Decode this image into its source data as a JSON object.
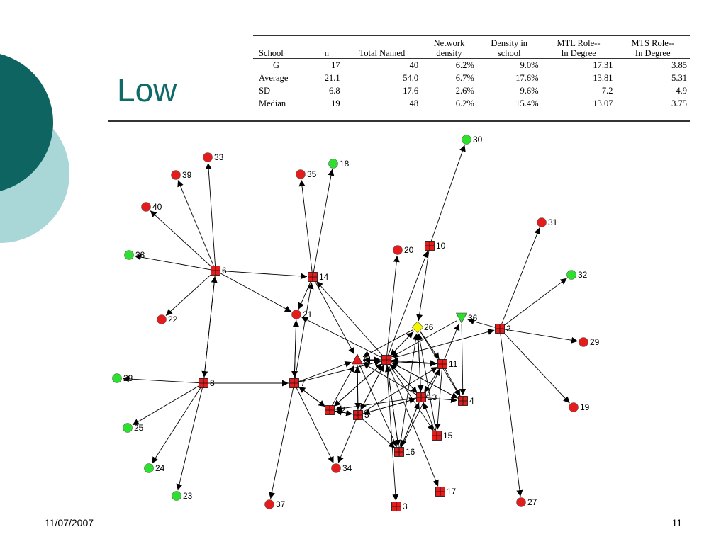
{
  "title": "Low",
  "footer": {
    "date": "11/07/2007",
    "page": "11"
  },
  "table": {
    "headers": [
      "School",
      "n",
      "Total Named",
      "Network density",
      "Density in school",
      "MTL Role-- In Degree",
      "MTS Role-- In Degree"
    ],
    "header_lines": [
      [
        "School"
      ],
      [
        "n"
      ],
      [
        "Total Named"
      ],
      [
        "Network",
        "density"
      ],
      [
        "Density in",
        "school"
      ],
      [
        "MTL Role--",
        "In Degree"
      ],
      [
        "MTS Role--",
        "In Degree"
      ]
    ],
    "rows": [
      [
        "G",
        "17",
        "40",
        "6.2%",
        "9.0%",
        "17.31",
        "3.85"
      ],
      [
        "Average",
        "21.1",
        "54.0",
        "6.7%",
        "17.6%",
        "13.81",
        "5.31"
      ],
      [
        "SD",
        "6.8",
        "17.6",
        "2.6%",
        "9.6%",
        "7.2",
        "4.9"
      ],
      [
        "Median",
        "19",
        "48",
        "6.2%",
        "15.4%",
        "13.07",
        "3.75"
      ]
    ]
  },
  "network": {
    "colors": {
      "red": "#e41c1c",
      "green": "#2ee02e",
      "yellow": "#f5f500",
      "edge": "#000000"
    },
    "nodes": [
      {
        "id": "1",
        "label": "1",
        "shape": "square",
        "color": "red"
      },
      {
        "id": "2",
        "label": "2",
        "shape": "square",
        "color": "red"
      },
      {
        "id": "3",
        "label": "3",
        "shape": "square",
        "color": "red"
      },
      {
        "id": "4",
        "label": "4",
        "shape": "square",
        "color": "red"
      },
      {
        "id": "5",
        "label": "5",
        "shape": "square",
        "color": "red"
      },
      {
        "id": "6",
        "label": "6",
        "shape": "square",
        "color": "red"
      },
      {
        "id": "7",
        "label": "7",
        "shape": "square",
        "color": "red"
      },
      {
        "id": "8",
        "label": "8",
        "shape": "square",
        "color": "red"
      },
      {
        "id": "9",
        "label": "9",
        "shape": "triangle-up",
        "color": "red"
      },
      {
        "id": "10",
        "label": "10",
        "shape": "square",
        "color": "red"
      },
      {
        "id": "11",
        "label": "11",
        "shape": "square",
        "color": "red"
      },
      {
        "id": "12",
        "label": "12",
        "shape": "square",
        "color": "red"
      },
      {
        "id": "13",
        "label": "13",
        "shape": "square",
        "color": "red"
      },
      {
        "id": "14",
        "label": "14",
        "shape": "square",
        "color": "red"
      },
      {
        "id": "15",
        "label": "15",
        "shape": "square",
        "color": "red"
      },
      {
        "id": "16",
        "label": "16",
        "shape": "square",
        "color": "red"
      },
      {
        "id": "17",
        "label": "17",
        "shape": "square",
        "color": "red"
      },
      {
        "id": "18",
        "label": "18",
        "shape": "circle",
        "color": "green"
      },
      {
        "id": "19",
        "label": "19",
        "shape": "circle",
        "color": "red"
      },
      {
        "id": "20",
        "label": "20",
        "shape": "circle",
        "color": "red"
      },
      {
        "id": "21",
        "label": "21",
        "shape": "circle",
        "color": "red"
      },
      {
        "id": "22",
        "label": "22",
        "shape": "circle",
        "color": "red"
      },
      {
        "id": "23",
        "label": "23",
        "shape": "circle",
        "color": "green"
      },
      {
        "id": "24",
        "label": "24",
        "shape": "circle",
        "color": "green"
      },
      {
        "id": "25",
        "label": "25",
        "shape": "circle",
        "color": "green"
      },
      {
        "id": "26",
        "label": "26",
        "shape": "diamond",
        "color": "yellow"
      },
      {
        "id": "27",
        "label": "27",
        "shape": "circle",
        "color": "red"
      },
      {
        "id": "28",
        "label": "28",
        "shape": "circle",
        "color": "green"
      },
      {
        "id": "29",
        "label": "29",
        "shape": "circle",
        "color": "red"
      },
      {
        "id": "30",
        "label": "30",
        "shape": "circle",
        "color": "green"
      },
      {
        "id": "31",
        "label": "31",
        "shape": "circle",
        "color": "red"
      },
      {
        "id": "32",
        "label": "32",
        "shape": "circle",
        "color": "green"
      },
      {
        "id": "33",
        "label": "33",
        "shape": "circle",
        "color": "red"
      },
      {
        "id": "34",
        "label": "34",
        "shape": "circle",
        "color": "red"
      },
      {
        "id": "35",
        "label": "35",
        "shape": "circle",
        "color": "red"
      },
      {
        "id": "36",
        "label": "36",
        "shape": "triangle-down",
        "color": "green"
      },
      {
        "id": "37",
        "label": "37",
        "shape": "circle",
        "color": "red"
      },
      {
        "id": "38",
        "label": "38",
        "shape": "circle",
        "color": "green"
      },
      {
        "id": "39",
        "label": "39",
        "shape": "circle",
        "color": "red"
      },
      {
        "id": "40",
        "label": "40",
        "shape": "circle",
        "color": "red"
      }
    ],
    "edges": [
      [
        "6",
        "33"
      ],
      [
        "6",
        "39"
      ],
      [
        "6",
        "40"
      ],
      [
        "6",
        "38"
      ],
      [
        "6",
        "14"
      ],
      [
        "6",
        "21"
      ],
      [
        "6",
        "22"
      ],
      [
        "6",
        "8"
      ],
      [
        "8",
        "6"
      ],
      [
        "8",
        "28"
      ],
      [
        "8",
        "25"
      ],
      [
        "8",
        "24"
      ],
      [
        "8",
        "23"
      ],
      [
        "8",
        "7"
      ],
      [
        "14",
        "35"
      ],
      [
        "14",
        "18"
      ],
      [
        "14",
        "21"
      ],
      [
        "14",
        "9"
      ],
      [
        "7",
        "14"
      ],
      [
        "7",
        "21"
      ],
      [
        "7",
        "37"
      ],
      [
        "7",
        "34"
      ],
      [
        "7",
        "12"
      ],
      [
        "7",
        "9"
      ],
      [
        "7",
        "1"
      ],
      [
        "21",
        "7"
      ],
      [
        "1",
        "21"
      ],
      [
        "1",
        "20"
      ],
      [
        "1",
        "10"
      ],
      [
        "1",
        "26"
      ],
      [
        "1",
        "2"
      ],
      [
        "1",
        "11"
      ],
      [
        "1",
        "13"
      ],
      [
        "1",
        "4"
      ],
      [
        "1",
        "15"
      ],
      [
        "1",
        "16"
      ],
      [
        "1",
        "5"
      ],
      [
        "1",
        "3"
      ],
      [
        "1",
        "17"
      ],
      [
        "1",
        "14"
      ],
      [
        "1",
        "9"
      ],
      [
        "1",
        "12"
      ],
      [
        "9",
        "1"
      ],
      [
        "9",
        "11"
      ],
      [
        "9",
        "5"
      ],
      [
        "9",
        "16"
      ],
      [
        "10",
        "30"
      ],
      [
        "10",
        "26"
      ],
      [
        "2",
        "31"
      ],
      [
        "2",
        "32"
      ],
      [
        "2",
        "29"
      ],
      [
        "2",
        "19"
      ],
      [
        "2",
        "27"
      ],
      [
        "2",
        "36"
      ],
      [
        "11",
        "36"
      ],
      [
        "11",
        "9"
      ],
      [
        "11",
        "1"
      ],
      [
        "11",
        "4"
      ],
      [
        "11",
        "15"
      ],
      [
        "11",
        "13"
      ],
      [
        "26",
        "9"
      ],
      [
        "26",
        "11"
      ],
      [
        "26",
        "13"
      ],
      [
        "26",
        "4"
      ],
      [
        "26",
        "1"
      ],
      [
        "36",
        "4"
      ],
      [
        "36",
        "1"
      ],
      [
        "13",
        "9"
      ],
      [
        "13",
        "1"
      ],
      [
        "13",
        "4"
      ],
      [
        "13",
        "16"
      ],
      [
        "13",
        "5"
      ],
      [
        "13",
        "12"
      ],
      [
        "13",
        "26"
      ],
      [
        "5",
        "34"
      ],
      [
        "5",
        "16"
      ],
      [
        "5",
        "13"
      ],
      [
        "5",
        "11"
      ],
      [
        "5",
        "9"
      ],
      [
        "5",
        "1"
      ],
      [
        "5",
        "12"
      ],
      [
        "12",
        "5"
      ],
      [
        "12",
        "9"
      ],
      [
        "12",
        "1"
      ],
      [
        "15",
        "26"
      ],
      [
        "15",
        "13"
      ],
      [
        "16",
        "13"
      ],
      [
        "16",
        "11"
      ],
      [
        "16",
        "26"
      ],
      [
        "16",
        "1"
      ],
      [
        "4",
        "1"
      ],
      [
        "12",
        "7"
      ]
    ]
  }
}
